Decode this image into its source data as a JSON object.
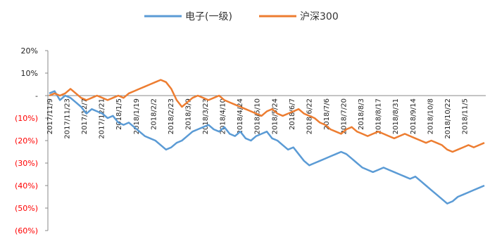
{
  "chart_data": {
    "type": "line",
    "title": "",
    "xlabel": "",
    "ylabel": "",
    "ylim": [
      -60,
      20
    ],
    "yticks": [
      {
        "value": 20,
        "label": "20%"
      },
      {
        "value": 10,
        "label": "10%"
      },
      {
        "value": 0,
        "label": "-"
      },
      {
        "value": -10,
        "label": "(10%)"
      },
      {
        "value": -20,
        "label": "(20%)"
      },
      {
        "value": -30,
        "label": "(30%)"
      },
      {
        "value": -40,
        "label": "(40%)"
      },
      {
        "value": -50,
        "label": "(50%)"
      },
      {
        "value": -60,
        "label": "(60%)"
      }
    ],
    "negative_label_color": "#ff0000",
    "positive_label_color": "#222222",
    "legend_position": "top-center",
    "grid": false,
    "x_ticks": [
      "2017/11/9",
      "2017/11/23",
      "2017/12/7",
      "2017/12/21",
      "2018/1/5",
      "2018/1/19",
      "2018/2/2",
      "2018/2/23",
      "2018/3/9",
      "2018/3/23",
      "2018/4/10",
      "2018/4/24",
      "2018/5/10",
      "2018/5/24",
      "2018/6/7",
      "2018/6/22",
      "2018/7/6",
      "2018/7/20",
      "2018/8/3",
      "2018/8/17",
      "2018/8/31",
      "2018/9/14",
      "2018/10/8",
      "2018/10/22",
      "2018/11/5"
    ],
    "series": [
      {
        "name": "电子(一级)",
        "color": "#5b9bd5",
        "values": [
          1,
          2,
          -2,
          0,
          -1,
          -3,
          -5,
          -8,
          -6,
          -7,
          -8,
          -10,
          -9,
          -12,
          -13,
          -12,
          -14,
          -16,
          -18,
          -19,
          -20,
          -22,
          -24,
          -23,
          -21,
          -20,
          -18,
          -16,
          -15,
          -14,
          -13,
          -15,
          -16,
          -14,
          -17,
          -18,
          -16,
          -19,
          -20,
          -18,
          -17,
          -16,
          -19,
          -20,
          -22,
          -24,
          -23,
          -26,
          -29,
          -31,
          -30,
          -29,
          -28,
          -27,
          -26,
          -25,
          -26,
          -28,
          -30,
          -32,
          -33,
          -34,
          -33,
          -32,
          -33,
          -34,
          -35,
          -36,
          -37,
          -36,
          -38,
          -40,
          -42,
          -44,
          -46,
          -48,
          -47,
          -45,
          -44,
          -43,
          -42,
          -41,
          -40
        ]
      },
      {
        "name": "沪深300",
        "color": "#ed7d31",
        "values": [
          0,
          1,
          0,
          1,
          3,
          1,
          -1,
          -2,
          -1,
          0,
          -1,
          -2,
          -1,
          0,
          -1,
          1,
          2,
          3,
          4,
          5,
          6,
          7,
          6,
          3,
          -2,
          -5,
          -3,
          -1,
          0,
          -1,
          -2,
          -1,
          0,
          -2,
          -3,
          -4,
          -5,
          -6,
          -7,
          -8,
          -9,
          -7,
          -6,
          -8,
          -9,
          -8,
          -7,
          -6,
          -8,
          -9,
          -10,
          -12,
          -13,
          -15,
          -16,
          -17,
          -15,
          -14,
          -16,
          -17,
          -18,
          -17,
          -16,
          -17,
          -18,
          -19,
          -18,
          -17,
          -18,
          -19,
          -20,
          -21,
          -20,
          -21,
          -22,
          -24,
          -25,
          -24,
          -23,
          -22,
          -23,
          -22,
          -21
        ]
      }
    ]
  }
}
